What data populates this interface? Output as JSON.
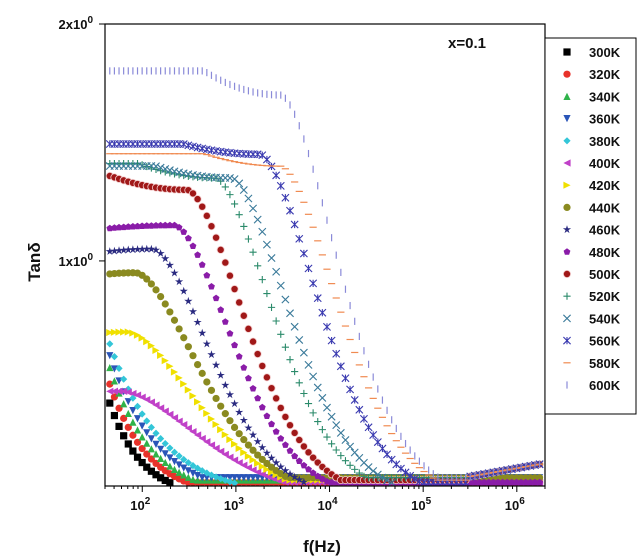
{
  "chart_data": {
    "type": "scatter",
    "title": "",
    "xlabel": "f(Hz)",
    "ylabel": "Tanδ",
    "x_scale": "log",
    "xlim": [
      40,
      2000000
    ],
    "ylim": [
      0.05,
      2.0
    ],
    "x_ticks": [
      {
        "value": 100,
        "base": "10",
        "exp": "2"
      },
      {
        "value": 1000,
        "base": "10",
        "exp": "3"
      },
      {
        "value": 10000,
        "base": "10",
        "exp": "4"
      },
      {
        "value": 100000,
        "base": "10",
        "exp": "5"
      },
      {
        "value": 1000000,
        "base": "10",
        "exp": "6"
      }
    ],
    "y_ticks": [
      {
        "value": 1.0,
        "label": "1x10",
        "exp": "0"
      },
      {
        "value": 2.0,
        "label": "2x10",
        "exp": "0"
      }
    ],
    "annotation": "x=0.1",
    "legend_position": "right",
    "series": [
      {
        "name": "300K",
        "color": "#000000",
        "marker": "square",
        "peak_f": 0,
        "peak_v": 0,
        "low_v": 0.4,
        "rolloff": 1.3
      },
      {
        "name": "320K",
        "color": "#e8322a",
        "marker": "circle",
        "peak_f": 0,
        "peak_v": 0,
        "low_v": 0.48,
        "rolloff": 1.1
      },
      {
        "name": "340K",
        "color": "#2fb34a",
        "marker": "triangle-up",
        "peak_f": 0,
        "peak_v": 0,
        "low_v": 0.55,
        "rolloff": 1.0
      },
      {
        "name": "360K",
        "color": "#2a55b8",
        "marker": "triangle-down",
        "peak_f": 0,
        "peak_v": 0,
        "low_v": 0.6,
        "rolloff": 0.9
      },
      {
        "name": "380K",
        "color": "#33c6d8",
        "marker": "diamond",
        "peak_f": 0,
        "peak_v": 0,
        "low_v": 0.65,
        "rolloff": 0.8
      },
      {
        "name": "400K",
        "color": "#c040c8",
        "marker": "triangle-left",
        "peak_f": 60,
        "peak_v": 0.45,
        "low_v": 0.75,
        "rolloff": 0.9
      },
      {
        "name": "420K",
        "color": "#f0e000",
        "marker": "triangle-right",
        "peak_f": 70,
        "peak_v": 0.7,
        "low_v": 0.6,
        "rolloff": 1.0
      },
      {
        "name": "440K",
        "color": "#8a8a20",
        "marker": "circle",
        "peak_f": 85,
        "peak_v": 0.95,
        "low_v": 0.7,
        "rolloff": 1.1
      },
      {
        "name": "460K",
        "color": "#2a2a80",
        "marker": "star",
        "peak_f": 130,
        "peak_v": 1.05,
        "low_v": 0.8,
        "rolloff": 1.2
      },
      {
        "name": "480K",
        "color": "#8a1ca8",
        "marker": "pentagon",
        "peak_f": 220,
        "peak_v": 1.15,
        "low_v": 0.9,
        "rolloff": 1.2
      },
      {
        "name": "500K",
        "color": "#a01818",
        "marker": "circle-dot",
        "peak_f": 300,
        "peak_v": 1.3,
        "low_v": 1.3,
        "rolloff": 1.2
      },
      {
        "name": "520K",
        "color": "#2a8a6a",
        "marker": "plus",
        "peak_f": 600,
        "peak_v": 1.35,
        "low_v": 1.3,
        "rolloff": 1.2
      },
      {
        "name": "540K",
        "color": "#3a7a9a",
        "marker": "cross",
        "peak_f": 900,
        "peak_v": 1.35,
        "low_v": 1.25,
        "rolloff": 1.2
      },
      {
        "name": "560K",
        "color": "#3a3ab0",
        "marker": "asterisk",
        "peak_f": 1800,
        "peak_v": 1.45,
        "low_v": 1.2,
        "rolloff": 1.2
      },
      {
        "name": "580K",
        "color": "#f08a50",
        "marker": "dash",
        "peak_f": 3000,
        "peak_v": 1.4,
        "low_v": 1.25,
        "rolloff": 1.2
      },
      {
        "name": "600K",
        "color": "#8a8ad8",
        "marker": "vbar",
        "peak_f": 3000,
        "peak_v": 1.7,
        "low_v": 1.4,
        "rolloff": 1.2
      }
    ]
  }
}
